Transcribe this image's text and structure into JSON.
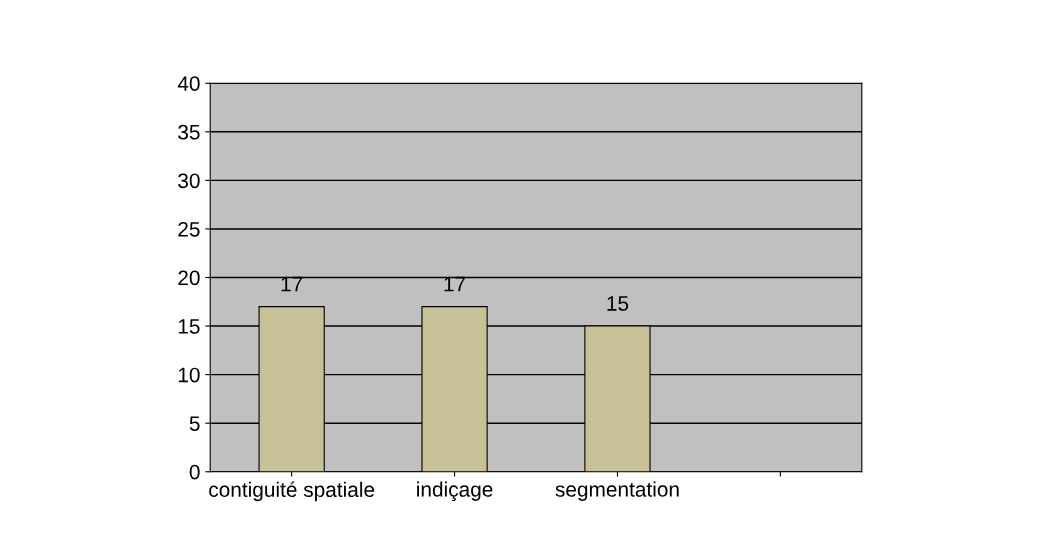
{
  "chart_data": {
    "type": "bar",
    "categories": [
      "contiguité spatiale",
      "indiçage",
      "segmentation",
      null
    ],
    "values": [
      17,
      17,
      15,
      null
    ],
    "color": "#c8c096",
    "ylim": [
      0,
      40
    ],
    "yticks": [
      0,
      5,
      10,
      15,
      20,
      25,
      30,
      35,
      40
    ],
    "grid": "y",
    "data_labels": true,
    "legend": false
  }
}
